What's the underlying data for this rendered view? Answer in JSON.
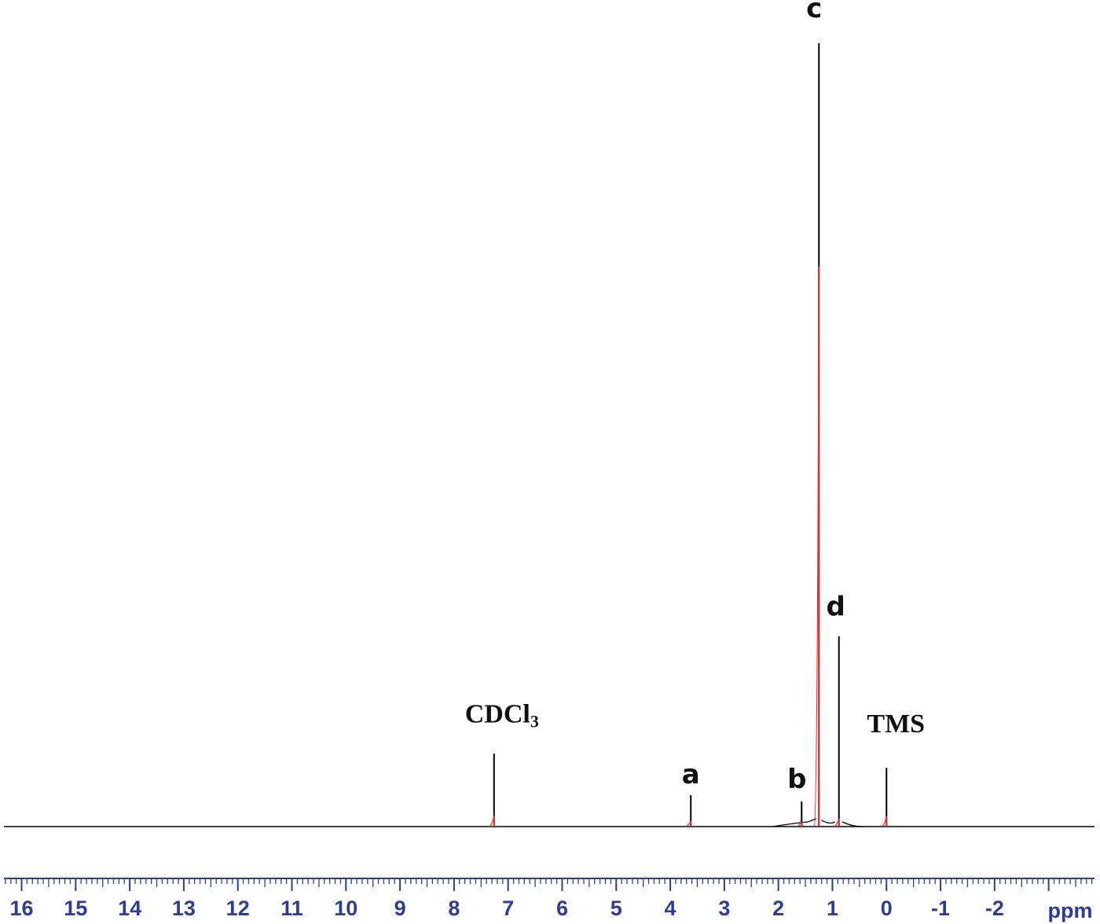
{
  "chart_data": {
    "type": "line",
    "x_unit": "ppm",
    "x_axis_reversed": true,
    "x_range": [
      16.4,
      -3.95
    ],
    "tick_labels": [
      "16",
      "15",
      "14",
      "13",
      "12",
      "11",
      "10",
      "9",
      "8",
      "7",
      "6",
      "5",
      "4",
      "3",
      "2",
      "1",
      "0",
      "-1",
      "-2"
    ],
    "tick_values": [
      16,
      15,
      14,
      13,
      12,
      11,
      10,
      9,
      8,
      7,
      6,
      5,
      4,
      3,
      2,
      1,
      0,
      -1,
      -2
    ],
    "minor_tick_step": 0.1,
    "y_relative_range": [
      0,
      1.0
    ],
    "peaks": [
      {
        "label": "CDCl3",
        "label_main": "CDCl",
        "label_sub": "3",
        "shift": 7.26,
        "height": 0.093
      },
      {
        "label": "a",
        "shift": 3.62,
        "height": 0.04
      },
      {
        "label": "b",
        "shift": 1.57,
        "height": 0.032
      },
      {
        "label": "c",
        "shift": 1.25,
        "height": 1.0
      },
      {
        "label": "d",
        "shift": 0.88,
        "height": 0.243
      },
      {
        "label": "TMS",
        "shift": 0.0,
        "height": 0.075
      }
    ],
    "colors": {
      "spectrum": "#000000",
      "integral": "#e03030",
      "axis": "#2e3c99",
      "tick_labels": "#2e3c99"
    }
  }
}
